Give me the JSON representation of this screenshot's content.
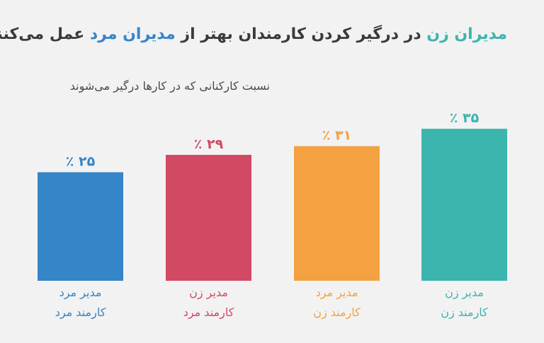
{
  "title": {
    "part1": "مدیران زن",
    "part2": " در درگیر کردن کارمندان بهتر از ",
    "part3": "مدیران مرد",
    "part4": " عمل می‌کنند"
  },
  "subtitle": "نسبت کارکنانی که در کارها درگیر می‌شوند",
  "colors": {
    "female_manager_female_employee": "#3bb5ad",
    "male_manager_female_employee": "#f4a141",
    "female_manager_male_employee": "#d24964",
    "male_manager_male_employee": "#3585c9"
  },
  "chart_data": {
    "type": "bar",
    "title": "مدیران زن در درگیر کردن کارمندان بهتر از مدیران مرد عمل می‌کنند",
    "ylabel": "نسبت کارکنانی که در کارها درگیر می‌شوند",
    "xlabel": "",
    "ylim": [
      0,
      40
    ],
    "grid": false,
    "bars": [
      {
        "manager": "مدیر زن",
        "employee": "کارمند زن",
        "value": 35,
        "label": "۳۵ ٪",
        "color": "#3bb5ad"
      },
      {
        "manager": "مدیر مرد",
        "employee": "کارمند زن",
        "value": 31,
        "label": "۳۱ ٪",
        "color": "#f4a141"
      },
      {
        "manager": "مدیر زن",
        "employee": "کارمند مرد",
        "value": 29,
        "label": "۲۹ ٪",
        "color": "#d24964"
      },
      {
        "manager": "مدیر مرد",
        "employee": "کارمند مرد",
        "value": 25,
        "label": "۲۵ ٪",
        "color": "#3585c9"
      }
    ]
  }
}
